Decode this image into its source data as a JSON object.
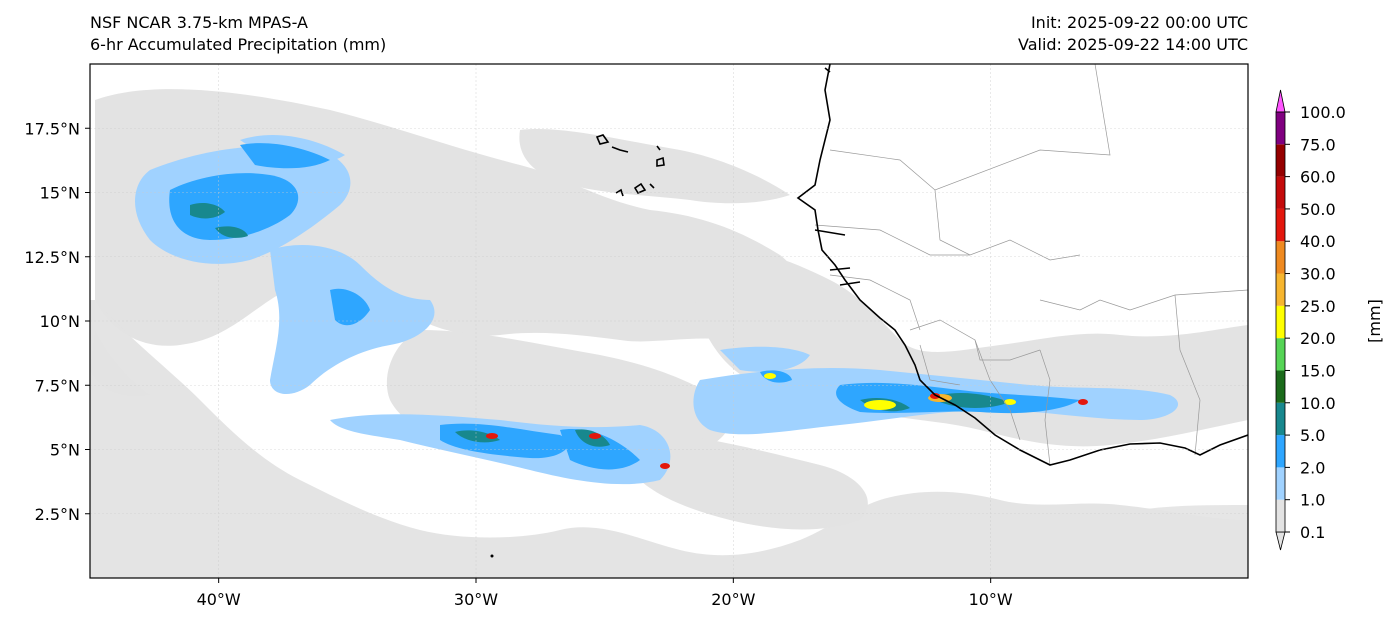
{
  "header": {
    "model": "NSF NCAR 3.75-km MPAS-A",
    "field": "6-hr Accumulated Precipitation (mm)",
    "init": "Init: 2025-09-22 00:00 UTC",
    "valid": "Valid: 2025-09-22 14:00 UTC"
  },
  "map": {
    "extent": {
      "lon_min": -45,
      "lon_max": 0,
      "lat_min": 0,
      "lat_max": 20
    },
    "lat_ticks": [
      {
        "value": 2.5,
        "label": "2.5°N"
      },
      {
        "value": 5,
        "label": "5°N"
      },
      {
        "value": 7.5,
        "label": "7.5°N"
      },
      {
        "value": 10,
        "label": "10°N"
      },
      {
        "value": 12.5,
        "label": "12.5°N"
      },
      {
        "value": 15,
        "label": "15°N"
      },
      {
        "value": 17.5,
        "label": "17.5°N"
      }
    ],
    "lon_ticks": [
      {
        "value": -40,
        "label": "40°W"
      },
      {
        "value": -30,
        "label": "30°W"
      },
      {
        "value": -20,
        "label": "20°W"
      },
      {
        "value": -10,
        "label": "10°W"
      }
    ],
    "grid": true
  },
  "colorbar": {
    "unit_label": "[mm]",
    "levels": [
      "0.1",
      "1.0",
      "2.0",
      "5.0",
      "10.0",
      "15.0",
      "20.0",
      "25.0",
      "30.0",
      "40.0",
      "50.0",
      "60.0",
      "75.0",
      "100.0"
    ],
    "colors": [
      "#e3e3e3",
      "#a0d2ff",
      "#2ea6ff",
      "#18888e",
      "#1b6b1b",
      "#55d455",
      "#ffff00",
      "#f6b52e",
      "#ef8a20",
      "#e3170d",
      "#c40b0b",
      "#950000",
      "#800080",
      "#ff55ff"
    ],
    "extend": "both"
  },
  "legend_colors": {
    "light_precip": "#e3e3e3",
    "coast": "#000000",
    "borders": "#999999"
  }
}
